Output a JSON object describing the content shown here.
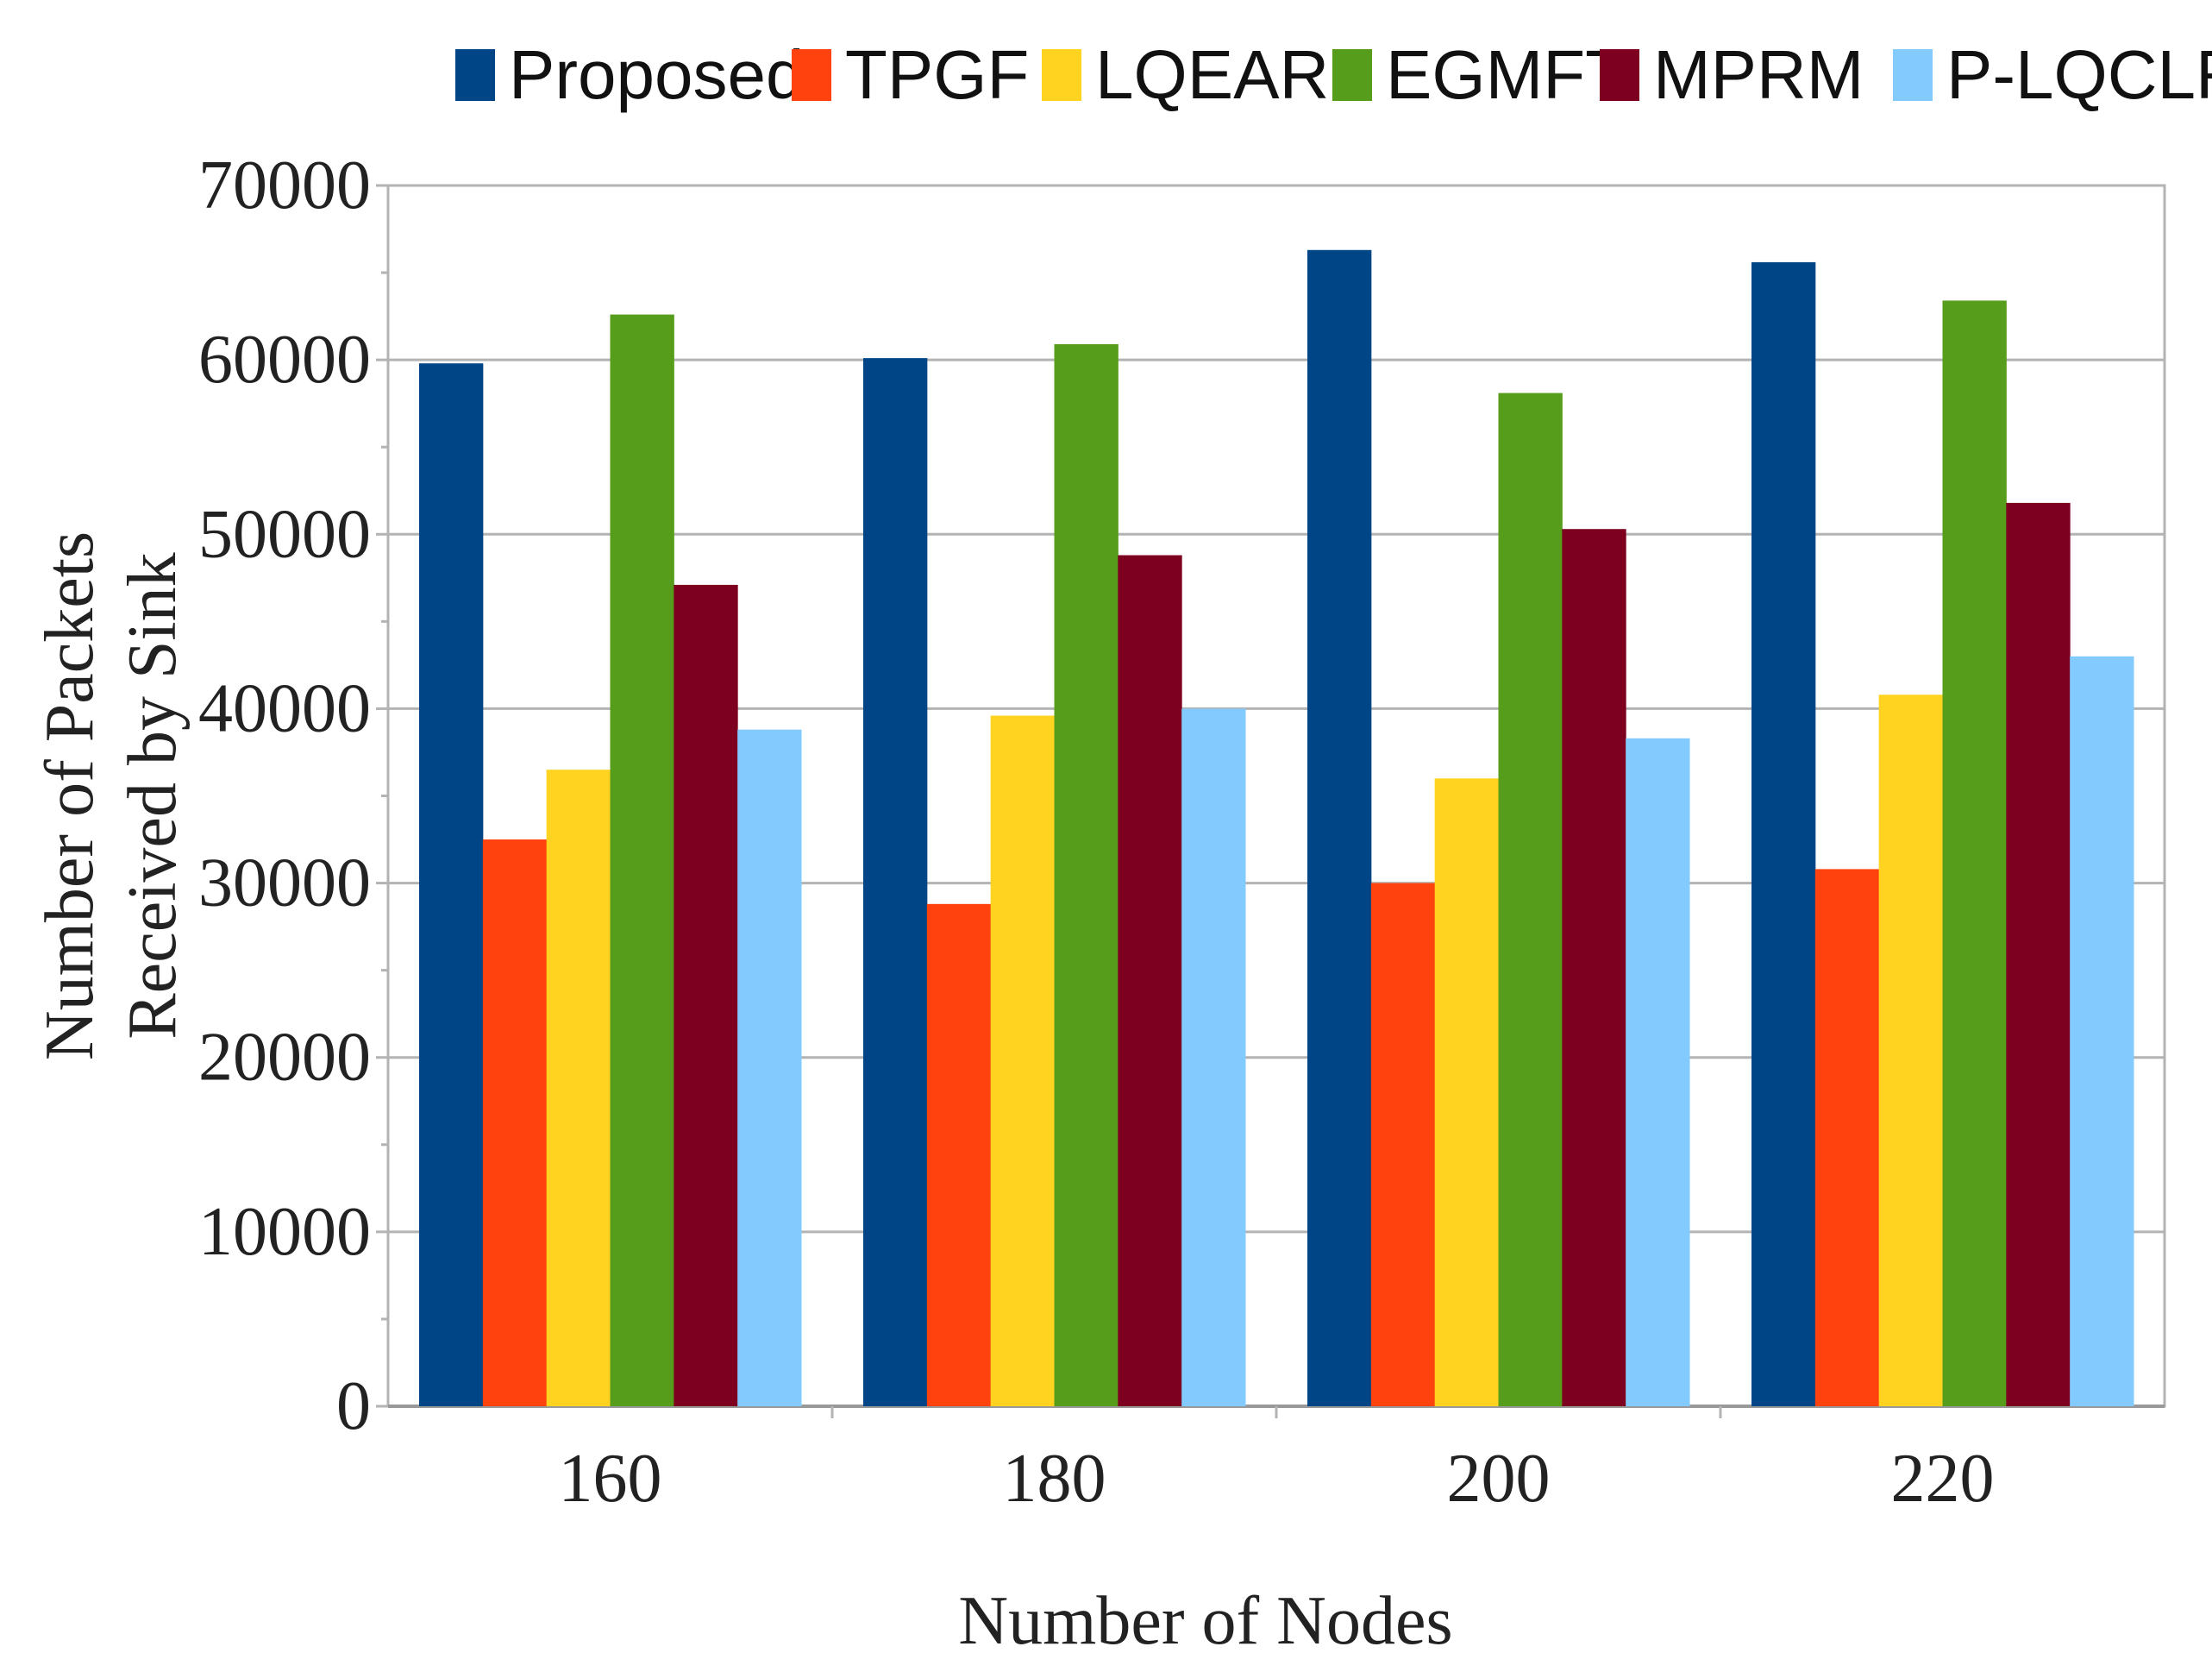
{
  "chart_data": {
    "type": "bar",
    "title": "",
    "xlabel": "Number of Nodes",
    "ylabel": "Number of Packets Received by Sink",
    "ylabel_lines": [
      "Number of Packets",
      "Received by Sink"
    ],
    "categories": [
      "160",
      "180",
      "200",
      "220"
    ],
    "ylim": [
      0,
      70000
    ],
    "yticks": [
      0,
      10000,
      20000,
      30000,
      40000,
      50000,
      60000,
      70000
    ],
    "ytick_labels": [
      "0",
      "10000",
      "20000",
      "30000",
      "40000",
      "50000",
      "60000",
      "70000"
    ],
    "grid": true,
    "legend_position": "top",
    "series": [
      {
        "name": "Proposed",
        "color": "#004586",
        "values": [
          59800,
          60100,
          66300,
          65600
        ]
      },
      {
        "name": "TPGF",
        "color": "#ff420e",
        "values": [
          32500,
          28800,
          30000,
          30800
        ]
      },
      {
        "name": "LQEAR",
        "color": "#ffd320",
        "values": [
          36500,
          39600,
          36000,
          40800
        ]
      },
      {
        "name": "EGMFT",
        "color": "#579d1c",
        "values": [
          62600,
          60900,
          58100,
          63400
        ]
      },
      {
        "name": "MPRM",
        "color": "#7e0021",
        "values": [
          47100,
          48800,
          50300,
          51800
        ]
      },
      {
        "name": "P-LQCLR",
        "color": "#83caff",
        "values": [
          38800,
          40000,
          38300,
          43000
        ]
      }
    ]
  }
}
